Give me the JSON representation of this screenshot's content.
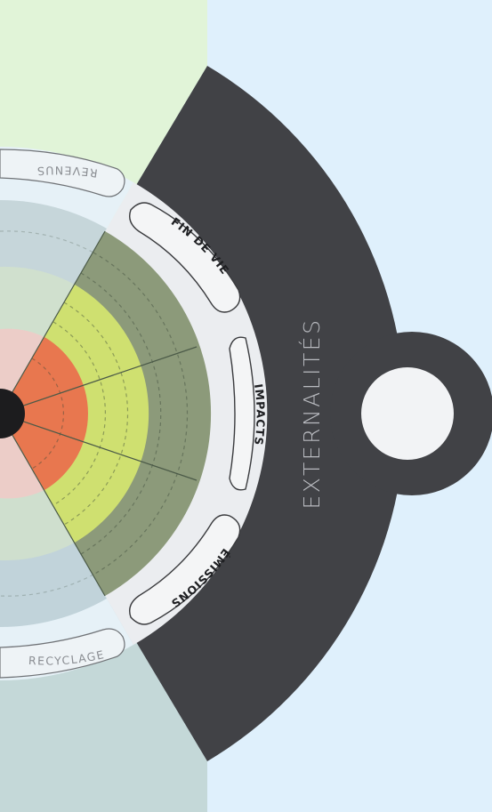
{
  "wheel": {
    "outer_label": "EXTERNALITÉS",
    "chips": {
      "fin_de_vie": "FIN DE VIE",
      "impacts": "IMPACTS",
      "emissions": "ÉMISSIONS"
    },
    "neighbor_chips": {
      "revenus": "REVENUS",
      "recyclage": "RECYCLAGE"
    }
  },
  "colors": {
    "background": "#dff0fc",
    "dark_band": "#414246",
    "top_sector": "#e1f4d8",
    "bottom_sector": "#c4d8d8",
    "chip_ring": "#ebedf0",
    "ring_green_dark": "#8c9a7a",
    "ring_yellow": "#cfe070",
    "core_orange": "#e8774f",
    "core_pink": "#eccdc8",
    "neighbor_top": "#c6d6da",
    "neighbor_bottom": "#c1d3da",
    "knob": "#f2f3f5"
  }
}
